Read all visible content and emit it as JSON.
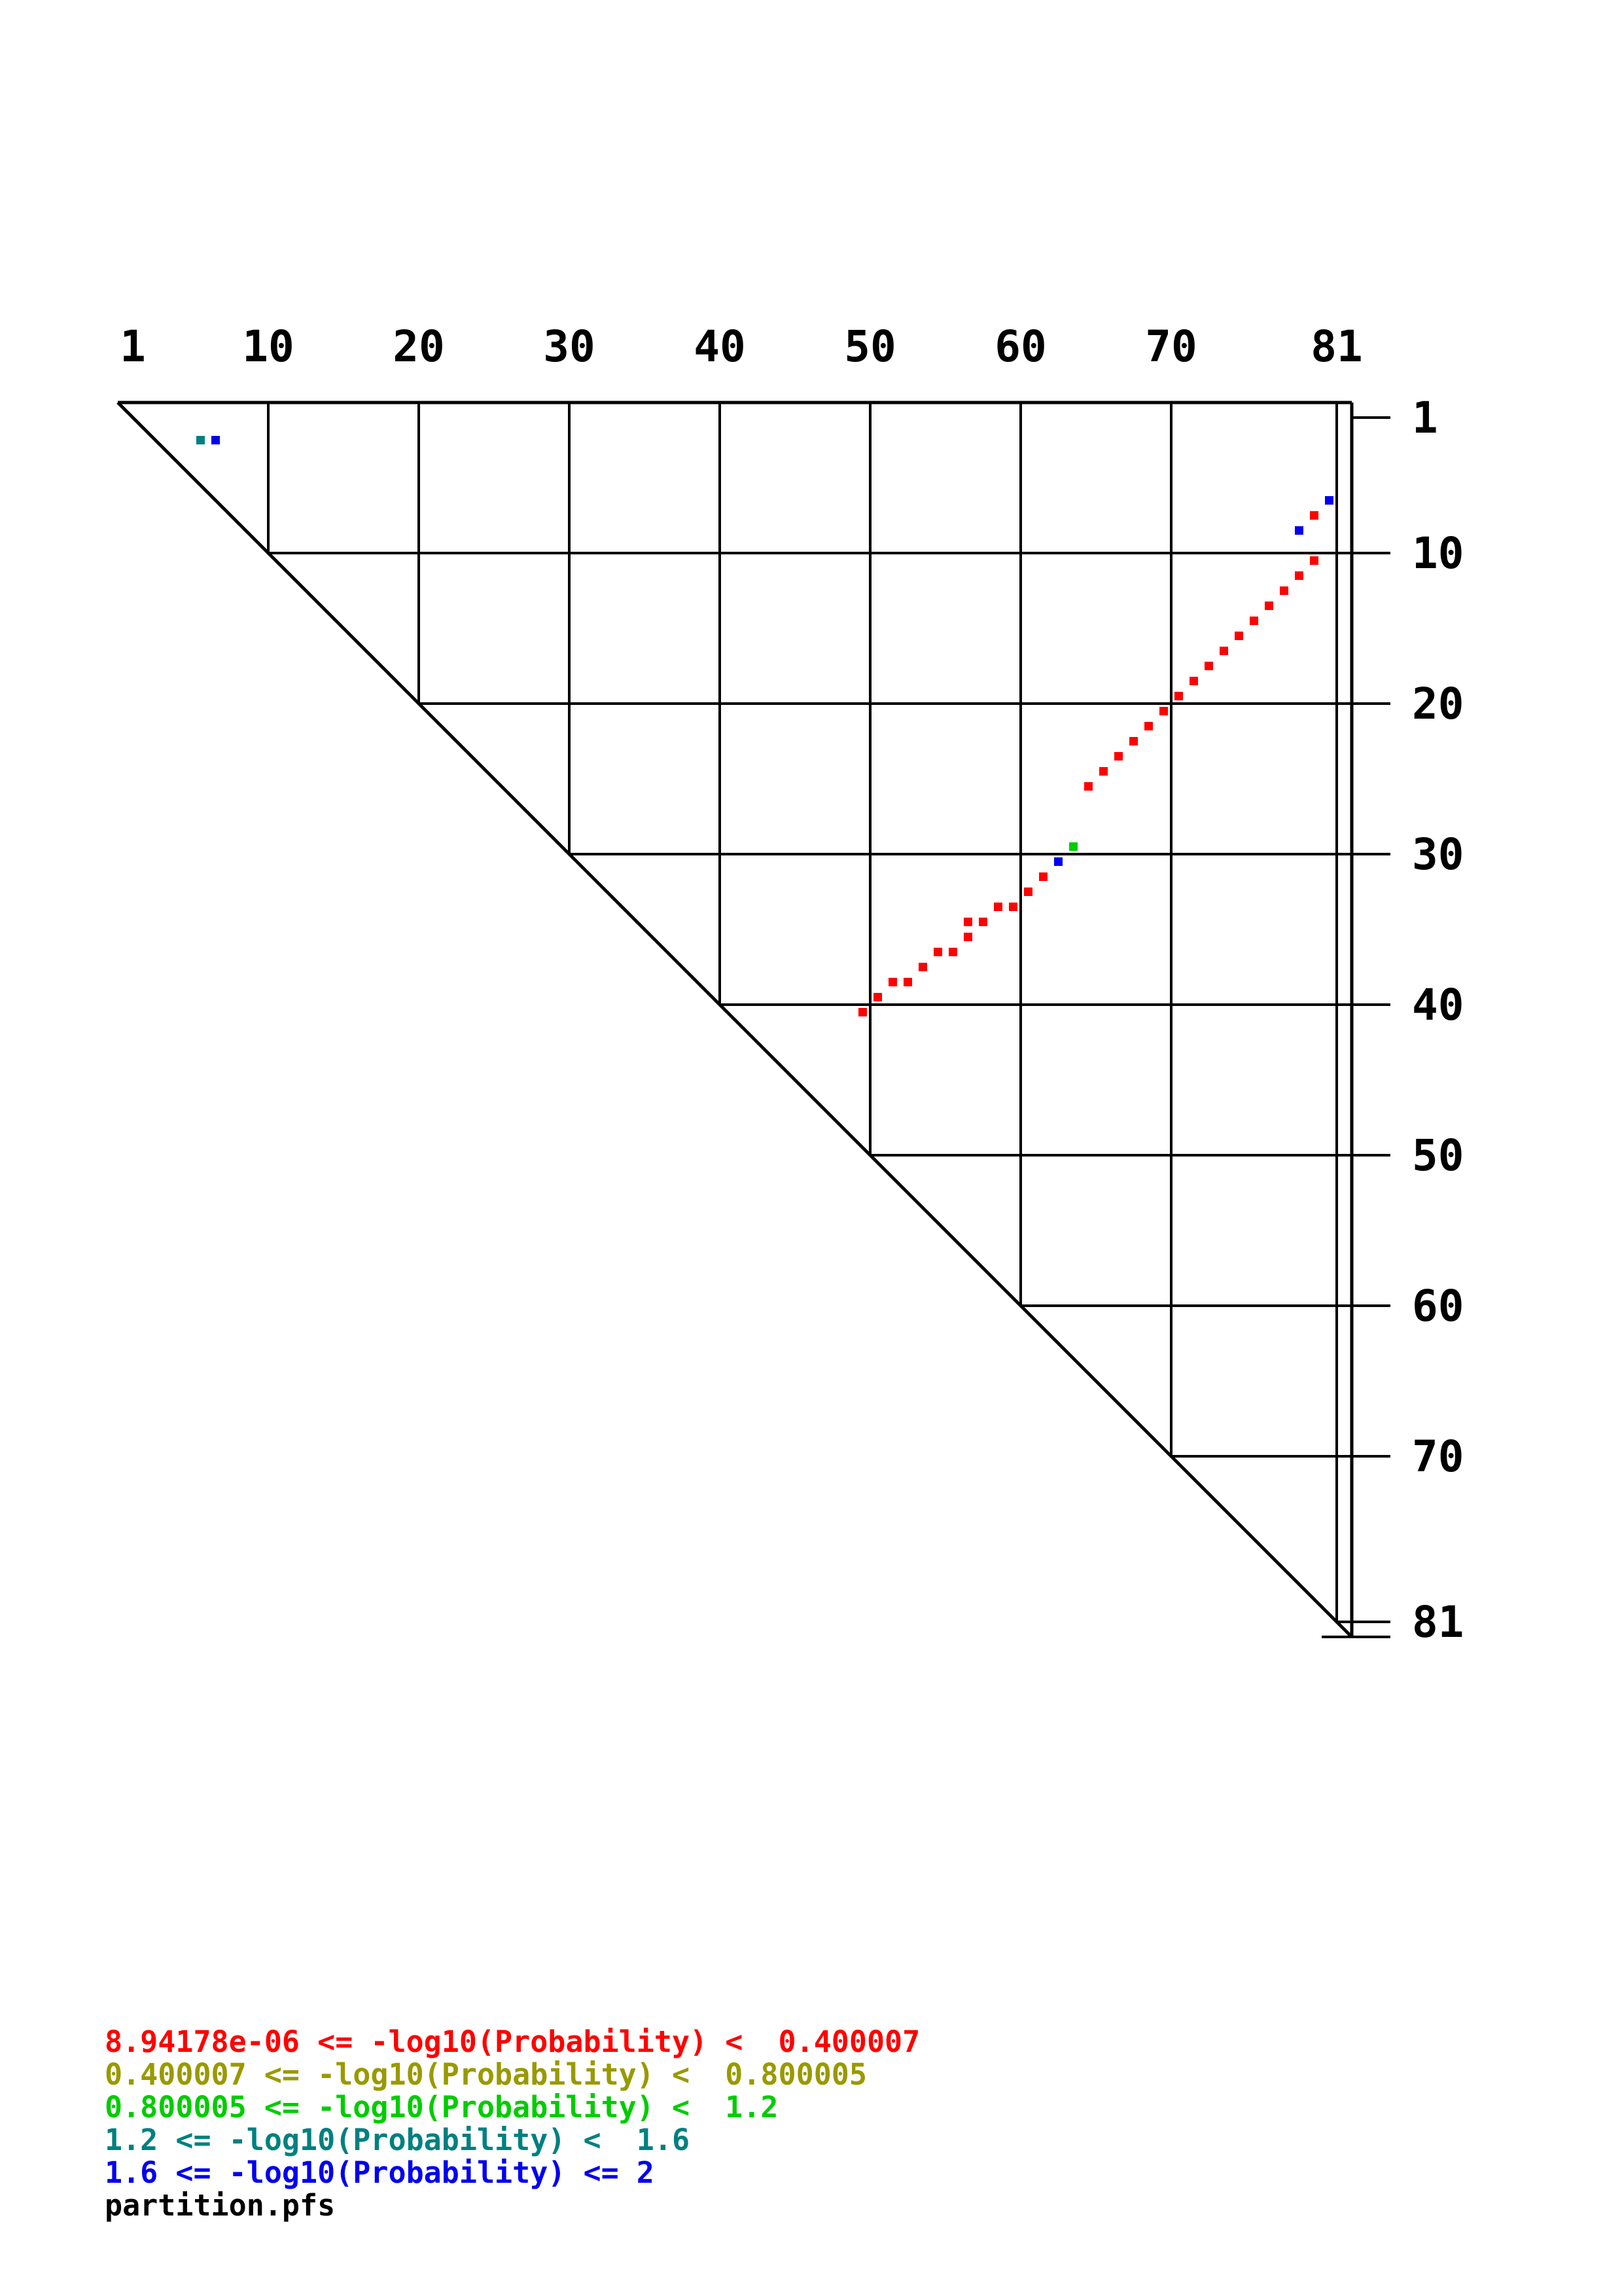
{
  "page": {
    "background": "#ffffff"
  },
  "chart_data": {
    "type": "scatter",
    "subtype": "triangular-probability-dot-plot",
    "title": "",
    "filename": "partition.pfs",
    "sequence_length": 82,
    "grid": true,
    "x_axis": {
      "side": "top",
      "ticks": [
        1,
        10,
        20,
        30,
        40,
        50,
        60,
        70,
        81
      ]
    },
    "y_axis": {
      "side": "right",
      "ticks": [
        1,
        10,
        20,
        30,
        40,
        50,
        60,
        70,
        81
      ]
    },
    "axis_color": "#000000",
    "levels": [
      {
        "level": "red",
        "hex": "#ff0000",
        "label": "8.94178e-06 <= -log10(Probability) <  0.400007"
      },
      {
        "level": "dark-yellow",
        "hex": "#999900",
        "label": "0.400007 <= -log10(Probability) <  0.800005"
      },
      {
        "level": "green",
        "hex": "#00cc00",
        "label": "0.800005 <= -log10(Probability) <  1.2"
      },
      {
        "level": "teal",
        "hex": "#008080",
        "label": "1.2 <= -log10(Probability) <  1.6"
      },
      {
        "level": "blue",
        "hex": "#0000ee",
        "label": "1.6 <= -log10(Probability) <= 2"
      }
    ],
    "points": [
      {
        "i": 6,
        "j": 3,
        "level": "teal"
      },
      {
        "i": 7,
        "j": 3,
        "level": "blue"
      },
      {
        "i": 81,
        "j": 7,
        "level": "blue"
      },
      {
        "i": 80,
        "j": 8,
        "level": "red"
      },
      {
        "i": 79,
        "j": 9,
        "level": "blue"
      },
      {
        "i": 80,
        "j": 11,
        "level": "red"
      },
      {
        "i": 79,
        "j": 12,
        "level": "red"
      },
      {
        "i": 78,
        "j": 13,
        "level": "red"
      },
      {
        "i": 77,
        "j": 14,
        "level": "red"
      },
      {
        "i": 76,
        "j": 15,
        "level": "red"
      },
      {
        "i": 75,
        "j": 16,
        "level": "red"
      },
      {
        "i": 74,
        "j": 17,
        "level": "red"
      },
      {
        "i": 73,
        "j": 18,
        "level": "red"
      },
      {
        "i": 72,
        "j": 19,
        "level": "red"
      },
      {
        "i": 71,
        "j": 20,
        "level": "red"
      },
      {
        "i": 70,
        "j": 21,
        "level": "red"
      },
      {
        "i": 69,
        "j": 22,
        "level": "red"
      },
      {
        "i": 68,
        "j": 23,
        "level": "red"
      },
      {
        "i": 67,
        "j": 24,
        "level": "red"
      },
      {
        "i": 66,
        "j": 25,
        "level": "red"
      },
      {
        "i": 65,
        "j": 26,
        "level": "red"
      },
      {
        "i": 64,
        "j": 30,
        "level": "green"
      },
      {
        "i": 63,
        "j": 31,
        "level": "blue"
      },
      {
        "i": 62,
        "j": 32,
        "level": "red"
      },
      {
        "i": 61,
        "j": 33,
        "level": "red"
      },
      {
        "i": 60,
        "j": 34,
        "level": "red"
      },
      {
        "i": 59,
        "j": 34,
        "level": "red"
      },
      {
        "i": 58,
        "j": 35,
        "level": "red"
      },
      {
        "i": 57,
        "j": 35,
        "level": "red"
      },
      {
        "i": 57,
        "j": 36,
        "level": "red"
      },
      {
        "i": 56,
        "j": 37,
        "level": "red"
      },
      {
        "i": 55,
        "j": 37,
        "level": "red"
      },
      {
        "i": 54,
        "j": 38,
        "level": "red"
      },
      {
        "i": 53,
        "j": 39,
        "level": "red"
      },
      {
        "i": 52,
        "j": 39,
        "level": "red"
      },
      {
        "i": 51,
        "j": 40,
        "level": "red"
      },
      {
        "i": 50,
        "j": 41,
        "level": "red"
      }
    ]
  }
}
